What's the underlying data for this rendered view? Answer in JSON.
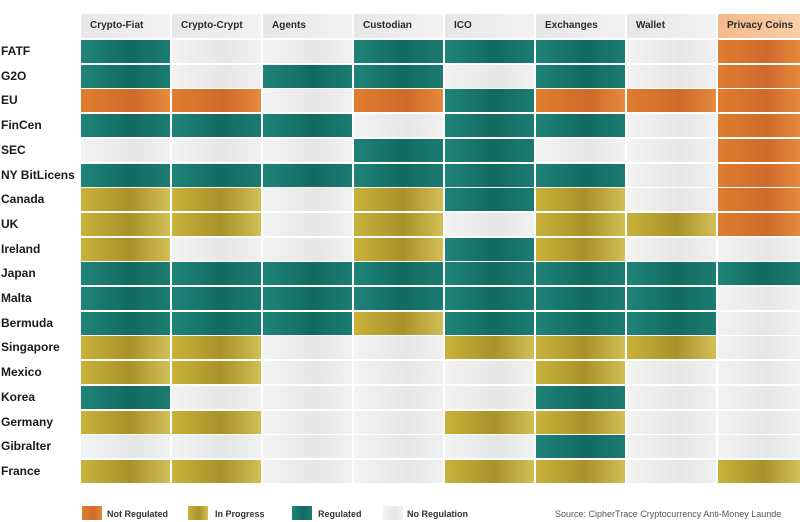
{
  "chart_data": {
    "type": "heatmap",
    "columns": [
      "Crypto-Fiat",
      "Crypto-Crypt",
      "Agents",
      "Custodian",
      "ICO",
      "Exchanges",
      "Wallet",
      "Privacy Coins"
    ],
    "rows": [
      "FATF",
      "G2O",
      "EU",
      "FinCen",
      "SEC",
      "NY BitLicens",
      "Canada",
      "UK",
      "Ireland",
      "Japan",
      "Malta",
      "Bermuda",
      "Singapore",
      "Mexico",
      "Korea",
      "Germany",
      "Gibralter",
      "France"
    ],
    "legend": [
      {
        "key": "N",
        "label": "Not Regulated",
        "color": "#d9722e"
      },
      {
        "key": "P",
        "label": "In Progress",
        "color": "#b59f2a"
      },
      {
        "key": "R",
        "label": "Regulated",
        "color": "#1a7a70"
      },
      {
        "key": "X",
        "label": "No Regulation",
        "color": "#ececec"
      }
    ],
    "values": [
      [
        "R",
        "X",
        "X",
        "R",
        "R",
        "R",
        "X",
        "N"
      ],
      [
        "R",
        "X",
        "R",
        "R",
        "X",
        "R",
        "X",
        "N"
      ],
      [
        "N",
        "N",
        "X",
        "N",
        "R",
        "N",
        "N",
        "N"
      ],
      [
        "R",
        "R",
        "R",
        "X",
        "R",
        "R",
        "X",
        "N"
      ],
      [
        "X",
        "X",
        "X",
        "R",
        "R",
        "X",
        "X",
        "N"
      ],
      [
        "R",
        "R",
        "R",
        "R",
        "R",
        "R",
        "X",
        "N"
      ],
      [
        "P",
        "P",
        "X",
        "P",
        "R",
        "P",
        "X",
        "N"
      ],
      [
        "P",
        "P",
        "X",
        "P",
        "X",
        "P",
        "P",
        "N"
      ],
      [
        "P",
        "X",
        "X",
        "P",
        "R",
        "P",
        "X",
        "X"
      ],
      [
        "R",
        "R",
        "R",
        "R",
        "R",
        "R",
        "R",
        "R"
      ],
      [
        "R",
        "R",
        "R",
        "R",
        "R",
        "R",
        "R",
        "X"
      ],
      [
        "R",
        "R",
        "R",
        "P",
        "R",
        "R",
        "R",
        "X"
      ],
      [
        "P",
        "P",
        "X",
        "X",
        "P",
        "P",
        "P",
        "X"
      ],
      [
        "P",
        "P",
        "X",
        "X",
        "X",
        "P",
        "X",
        "X"
      ],
      [
        "R",
        "X",
        "X",
        "X",
        "X",
        "R",
        "X",
        "X"
      ],
      [
        "P",
        "P",
        "X",
        "X",
        "P",
        "P",
        "X",
        "X"
      ],
      [
        "X",
        "X",
        "X",
        "X",
        "X",
        "R",
        "X",
        "X"
      ],
      [
        "P",
        "P",
        "X",
        "X",
        "P",
        "P",
        "X",
        "P"
      ]
    ],
    "source": "Source: CipherTrace Cryptocurrency Anti-Money Launde"
  }
}
